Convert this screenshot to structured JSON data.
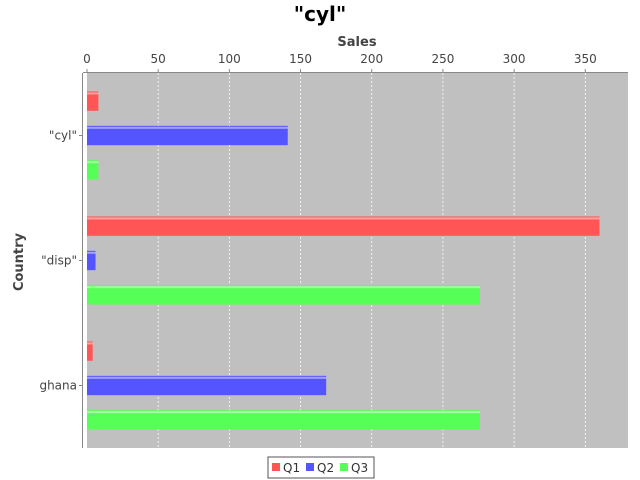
{
  "chart_data": {
    "type": "bar",
    "orientation": "horizontal",
    "title": "\"cyl\"",
    "xlabel": "Sales",
    "ylabel": "Country",
    "categories": [
      "\"cyl\"",
      "\"disp\"",
      "ghana"
    ],
    "series": [
      {
        "name": "Q1",
        "color": "#ff5555",
        "values": [
          8,
          360,
          4
        ]
      },
      {
        "name": "Q2",
        "color": "#5555ff",
        "values": [
          141,
          6,
          168
        ]
      },
      {
        "name": "Q3",
        "color": "#55ff55",
        "values": [
          8,
          276,
          276
        ]
      }
    ],
    "xlim": [
      0,
      380
    ],
    "xticks": [
      0,
      50,
      100,
      150,
      200,
      250,
      300,
      350
    ],
    "grid": true,
    "legend_position": "bottom",
    "plot_background": "#c0c0c0"
  }
}
